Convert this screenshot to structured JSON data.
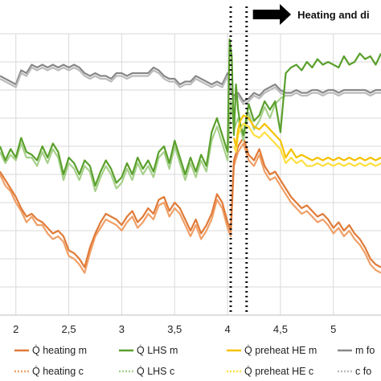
{
  "chart_data": {
    "type": "line",
    "title": "",
    "xlabel": "",
    "ylabel": "",
    "xlim": [
      1.85,
      5.45
    ],
    "ylim": [
      0,
      10
    ],
    "x_ticks": [
      2,
      2.5,
      3,
      3.5,
      4,
      4.5,
      5
    ],
    "x_tick_labels": [
      "2",
      "2,5",
      "3",
      "3,5",
      "4",
      "4,5",
      "5"
    ],
    "grid": true,
    "annotation": {
      "text": "Heating and di",
      "arrow_from_x": 4.24,
      "arrow_to_x": 4.6
    },
    "vertical_markers": [
      4.03,
      4.18
    ],
    "series": [
      {
        "name": "Q̇ heating m",
        "color": "#e07b39",
        "x": [
          1.85,
          1.9,
          1.95,
          2.0,
          2.05,
          2.1,
          2.15,
          2.2,
          2.25,
          2.3,
          2.35,
          2.4,
          2.45,
          2.5,
          2.55,
          2.6,
          2.65,
          2.7,
          2.75,
          2.8,
          2.85,
          2.9,
          2.95,
          3.0,
          3.05,
          3.1,
          3.15,
          3.2,
          3.25,
          3.3,
          3.35,
          3.4,
          3.45,
          3.5,
          3.55,
          3.6,
          3.65,
          3.7,
          3.75,
          3.8,
          3.85,
          3.9,
          3.95,
          4.0,
          4.03,
          4.06,
          4.1,
          4.15,
          4.2,
          4.25,
          4.3,
          4.35,
          4.4,
          4.45,
          4.5,
          4.55,
          4.6,
          4.65,
          4.7,
          4.75,
          4.8,
          4.85,
          4.9,
          4.95,
          5.0,
          5.05,
          5.1,
          5.15,
          5.2,
          5.25,
          5.3,
          5.35,
          5.4,
          5.45
        ],
        "y": [
          5.1,
          4.8,
          4.5,
          4.2,
          3.8,
          3.5,
          3.6,
          3.4,
          3.3,
          3.1,
          2.9,
          3.0,
          2.8,
          2.3,
          2.2,
          2.0,
          1.7,
          2.4,
          2.9,
          3.3,
          3.6,
          3.5,
          3.4,
          3.2,
          3.5,
          3.7,
          3.3,
          3.5,
          3.8,
          3.6,
          4.1,
          4.2,
          3.7,
          4.0,
          3.8,
          3.4,
          3.0,
          3.4,
          2.9,
          3.2,
          3.6,
          4.3,
          4.0,
          3.3,
          3.0,
          5.5,
          6.0,
          6.3,
          5.7,
          5.5,
          5.9,
          5.3,
          5.0,
          5.1,
          4.8,
          4.5,
          4.2,
          4.0,
          3.8,
          3.9,
          3.7,
          3.5,
          3.6,
          3.4,
          3.1,
          3.3,
          3.0,
          3.2,
          2.9,
          2.7,
          2.4,
          2.0,
          1.8,
          1.7
        ]
      },
      {
        "name": "Q̇ heating c",
        "color": "#f0a068",
        "x": [
          1.85,
          1.9,
          1.95,
          2.0,
          2.05,
          2.1,
          2.15,
          2.2,
          2.25,
          2.3,
          2.35,
          2.4,
          2.45,
          2.5,
          2.55,
          2.6,
          2.65,
          2.7,
          2.75,
          2.8,
          2.85,
          2.9,
          2.95,
          3.0,
          3.05,
          3.1,
          3.15,
          3.2,
          3.25,
          3.3,
          3.35,
          3.4,
          3.45,
          3.5,
          3.55,
          3.6,
          3.65,
          3.7,
          3.75,
          3.8,
          3.85,
          3.9,
          3.95,
          4.0,
          4.03,
          4.06,
          4.1,
          4.15,
          4.2,
          4.25,
          4.3,
          4.35,
          4.4,
          4.45,
          4.5,
          4.55,
          4.6,
          4.65,
          4.7,
          4.75,
          4.8,
          4.85,
          4.9,
          4.95,
          5.0,
          5.05,
          5.1,
          5.15,
          5.2,
          5.25,
          5.3,
          5.35,
          5.4,
          5.45
        ],
        "y": [
          5.0,
          4.6,
          4.4,
          4.0,
          3.7,
          3.3,
          3.5,
          3.2,
          3.2,
          2.9,
          2.7,
          2.8,
          2.6,
          2.1,
          2.0,
          1.8,
          1.5,
          2.2,
          2.8,
          3.1,
          3.4,
          3.3,
          3.2,
          3.0,
          3.3,
          3.5,
          3.1,
          3.3,
          3.6,
          3.4,
          3.9,
          4.0,
          3.5,
          3.8,
          3.6,
          3.2,
          2.8,
          3.2,
          2.7,
          3.0,
          3.4,
          4.1,
          3.8,
          3.1,
          2.8,
          5.3,
          5.8,
          6.1,
          5.5,
          5.3,
          5.7,
          5.1,
          4.8,
          4.9,
          4.6,
          4.3,
          4.0,
          3.8,
          3.6,
          3.7,
          3.5,
          3.3,
          3.4,
          3.2,
          2.9,
          3.1,
          2.8,
          3.0,
          2.7,
          2.5,
          2.2,
          1.8,
          1.6,
          1.5
        ]
      },
      {
        "name": "Q̇ LHS m",
        "color": "#5aa02c",
        "x": [
          1.85,
          1.9,
          1.95,
          2.0,
          2.05,
          2.1,
          2.15,
          2.2,
          2.25,
          2.3,
          2.35,
          2.4,
          2.45,
          2.5,
          2.55,
          2.6,
          2.65,
          2.7,
          2.75,
          2.8,
          2.85,
          2.9,
          2.95,
          3.0,
          3.05,
          3.1,
          3.15,
          3.2,
          3.25,
          3.3,
          3.35,
          3.4,
          3.45,
          3.5,
          3.55,
          3.6,
          3.65,
          3.7,
          3.75,
          3.8,
          3.85,
          3.9,
          3.95,
          4.0,
          4.02,
          4.04,
          4.06,
          4.08,
          4.1,
          4.12,
          4.15,
          4.2,
          4.25,
          4.3,
          4.35,
          4.4,
          4.45,
          4.5,
          4.55,
          4.6,
          4.65,
          4.7,
          4.75,
          4.8,
          4.85,
          4.9,
          4.95,
          5.0,
          5.05,
          5.1,
          5.15,
          5.2,
          5.25,
          5.3,
          5.35,
          5.4,
          5.45
        ],
        "y": [
          6.0,
          5.5,
          5.9,
          5.6,
          6.3,
          5.8,
          5.7,
          5.5,
          6.0,
          5.6,
          6.1,
          5.8,
          5.0,
          5.6,
          5.4,
          5.0,
          5.5,
          5.3,
          4.6,
          5.1,
          5.5,
          5.2,
          4.7,
          4.9,
          5.4,
          5.0,
          5.6,
          5.2,
          5.5,
          5.1,
          5.8,
          6.0,
          5.4,
          6.2,
          5.6,
          5.0,
          5.6,
          5.1,
          5.7,
          5.3,
          6.5,
          7.0,
          6.4,
          5.8,
          9.8,
          9.2,
          6.4,
          8.2,
          7.3,
          6.8,
          6.4,
          7.5,
          6.9,
          7.1,
          7.6,
          7.3,
          7.6,
          6.5,
          8.6,
          8.8,
          8.9,
          8.7,
          9.0,
          8.8,
          9.1,
          8.9,
          9.0,
          8.9,
          8.8,
          9.2,
          8.9,
          9.0,
          9.3,
          9.1,
          9.2,
          8.9,
          9.3
        ]
      },
      {
        "name": "Q̇ LHS c",
        "color": "#a7d08c",
        "x": [
          1.85,
          1.9,
          1.95,
          2.0,
          2.05,
          2.1,
          2.15,
          2.2,
          2.25,
          2.3,
          2.35,
          2.4,
          2.45,
          2.5,
          2.55,
          2.6,
          2.65,
          2.7,
          2.75,
          2.8,
          2.85,
          2.9,
          2.95,
          3.0,
          3.05,
          3.1,
          3.15,
          3.2,
          3.25,
          3.3,
          3.35,
          3.4,
          3.45,
          3.5,
          3.55,
          3.6,
          3.65,
          3.7,
          3.75,
          3.8,
          3.85,
          3.9,
          3.95,
          4.0,
          4.03,
          4.06,
          4.1,
          4.15,
          4.2,
          4.25,
          4.3,
          4.35,
          4.4,
          4.45,
          4.5,
          4.55
        ],
        "y": [
          5.8,
          5.4,
          5.7,
          5.5,
          6.1,
          5.6,
          5.6,
          5.3,
          5.8,
          5.4,
          5.9,
          5.6,
          4.8,
          5.4,
          5.2,
          4.8,
          5.3,
          5.1,
          4.4,
          4.9,
          5.3,
          5.0,
          4.5,
          4.7,
          5.2,
          4.8,
          5.4,
          5.0,
          5.3,
          4.9,
          5.6,
          5.8,
          5.2,
          6.0,
          5.4,
          4.8,
          5.4,
          4.9,
          5.5,
          5.1,
          6.2,
          6.7,
          6.1,
          5.5,
          7.6,
          6.6,
          7.0,
          6.2,
          7.2,
          6.6,
          6.9,
          7.4,
          7.0,
          7.5,
          7.7,
          7.8
        ]
      },
      {
        "name": "Q̇ preheat HE m",
        "color": "#f5c200",
        "x": [
          4.06,
          4.08,
          4.1,
          4.12,
          4.15,
          4.2,
          4.25,
          4.3,
          4.35,
          4.4,
          4.45,
          4.5,
          4.55,
          4.6,
          4.65,
          4.7,
          4.75,
          4.8,
          4.85,
          4.9,
          4.95,
          5.0,
          5.05,
          5.1,
          5.15,
          5.2,
          5.25,
          5.3,
          5.35,
          5.4,
          5.45
        ],
        "y": [
          6.3,
          6.0,
          6.6,
          6.9,
          7.1,
          7.0,
          6.7,
          6.6,
          6.8,
          6.6,
          6.4,
          6.2,
          5.6,
          5.9,
          5.6,
          5.7,
          5.6,
          5.5,
          5.6,
          5.5,
          5.6,
          5.5,
          5.6,
          5.5,
          5.6,
          5.5,
          5.6,
          5.5,
          5.6,
          5.5,
          5.6
        ]
      },
      {
        "name": "Q̇ preheat HE c",
        "color": "#ffdf40",
        "x": [
          4.06,
          4.08,
          4.1,
          4.12,
          4.15,
          4.2,
          4.25,
          4.3,
          4.35,
          4.4,
          4.45,
          4.5,
          4.55,
          4.6,
          4.65,
          4.7,
          4.75,
          4.8,
          4.85,
          4.9,
          4.95,
          5.0,
          5.05,
          5.1,
          5.15,
          5.2,
          5.25,
          5.3,
          5.35,
          5.4,
          5.45
        ],
        "y": [
          6.0,
          5.8,
          6.4,
          6.6,
          6.8,
          6.7,
          6.4,
          6.3,
          6.5,
          6.3,
          6.1,
          5.9,
          5.4,
          5.6,
          5.4,
          5.5,
          5.3,
          5.3,
          5.4,
          5.3,
          5.4,
          5.3,
          5.4,
          5.3,
          5.4,
          5.3,
          5.4,
          5.3,
          5.4,
          5.3,
          5.4
        ]
      },
      {
        "name": "m fo",
        "color": "#888888",
        "x": [
          1.85,
          1.9,
          1.95,
          2.0,
          2.05,
          2.1,
          2.15,
          2.2,
          2.25,
          2.3,
          2.35,
          2.4,
          2.45,
          2.5,
          2.55,
          2.6,
          2.65,
          2.7,
          2.75,
          2.8,
          2.85,
          2.9,
          2.95,
          3.0,
          3.05,
          3.1,
          3.15,
          3.2,
          3.25,
          3.3,
          3.35,
          3.4,
          3.45,
          3.5,
          3.55,
          3.6,
          3.65,
          3.7,
          3.75,
          3.8,
          3.85,
          3.9,
          3.95,
          4.0,
          4.03,
          4.06,
          4.1,
          4.15,
          4.2,
          4.25,
          4.3,
          4.35,
          4.4,
          4.45,
          4.5,
          4.55,
          4.6,
          4.65,
          4.7,
          4.75,
          4.8,
          4.85,
          4.9,
          4.95,
          5.0,
          5.05,
          5.1,
          5.15,
          5.2,
          5.25,
          5.3,
          5.35,
          5.4,
          5.45
        ],
        "y": [
          8.5,
          8.4,
          8.3,
          8.2,
          8.7,
          8.6,
          8.9,
          8.8,
          8.9,
          8.8,
          8.9,
          8.8,
          8.9,
          8.8,
          8.9,
          8.8,
          8.6,
          8.5,
          8.6,
          8.5,
          8.5,
          8.4,
          8.6,
          8.6,
          8.5,
          8.6,
          8.6,
          8.6,
          8.6,
          8.8,
          8.7,
          8.5,
          8.4,
          8.4,
          8.2,
          8.3,
          8.3,
          8.5,
          8.4,
          8.3,
          8.2,
          8.3,
          8.2,
          8.6,
          8.0,
          7.8,
          7.9,
          7.6,
          7.7,
          7.9,
          7.8,
          8.0,
          8.1,
          8.2,
          8.0,
          7.9,
          7.9,
          8.0,
          7.9,
          7.9,
          8.0,
          8.0,
          7.9,
          8.0,
          8.0,
          7.9,
          8.0,
          8.0,
          8.0,
          8.0,
          8.0,
          7.9,
          8.0,
          8.0
        ]
      },
      {
        "name": "c fo",
        "color": "#bbbbbb",
        "x": [
          1.85,
          1.9,
          1.95,
          2.0,
          2.05,
          2.1,
          2.15,
          2.2,
          2.25,
          2.3,
          2.35,
          2.4,
          2.45,
          2.5,
          2.55,
          2.6,
          2.65,
          2.7,
          2.75,
          2.8,
          2.85,
          2.9,
          2.95,
          3.0,
          3.05,
          3.1,
          3.15,
          3.2,
          3.25,
          3.3,
          3.35,
          3.4,
          3.45,
          3.5,
          3.55,
          3.6,
          3.65,
          3.7,
          3.75,
          3.8,
          3.85,
          3.9,
          3.95,
          4.0,
          4.03,
          4.06,
          4.1,
          4.15,
          4.2,
          4.25,
          4.3,
          4.35,
          4.4,
          4.45,
          4.5,
          4.55,
          4.6,
          4.65,
          4.7,
          4.75,
          4.8,
          4.85,
          4.9,
          4.95,
          5.0,
          5.05,
          5.1,
          5.15,
          5.2,
          5.25,
          5.3,
          5.35,
          5.4,
          5.45
        ],
        "y": [
          8.4,
          8.3,
          8.2,
          8.1,
          8.6,
          8.5,
          8.8,
          8.7,
          8.8,
          8.7,
          8.8,
          8.7,
          8.8,
          8.7,
          8.8,
          8.7,
          8.5,
          8.4,
          8.5,
          8.4,
          8.4,
          8.3,
          8.5,
          8.5,
          8.4,
          8.5,
          8.5,
          8.5,
          8.5,
          8.7,
          8.6,
          8.4,
          8.3,
          8.3,
          8.1,
          8.2,
          8.2,
          8.4,
          8.3,
          8.2,
          8.1,
          8.2,
          8.1,
          8.5,
          7.9,
          7.7,
          7.8,
          7.5,
          7.6,
          7.8,
          7.7,
          7.9,
          8.0,
          8.1,
          7.9,
          7.8,
          7.8,
          7.9,
          7.8,
          7.8,
          7.9,
          7.9,
          7.8,
          7.9,
          7.9,
          7.8,
          7.9,
          7.9,
          7.9,
          7.9,
          7.9,
          7.8,
          7.9,
          7.9
        ]
      }
    ],
    "legend": [
      {
        "label": "Q̇ heating m",
        "color": "#e07b39",
        "dotted": false
      },
      {
        "label": "Q̇ LHS m",
        "color": "#5aa02c",
        "dotted": false
      },
      {
        "label": "Q̇ preheat HE m",
        "color": "#f5c200",
        "dotted": false
      },
      {
        "label": "m fo",
        "color": "#888888",
        "dotted": false
      },
      {
        "label": "Q̇ heating c",
        "color": "#f0a068",
        "dotted": true
      },
      {
        "label": "Q̇ LHS c",
        "color": "#a7d08c",
        "dotted": true
      },
      {
        "label": "Q̇ preheat HE c",
        "color": "#ffdf40",
        "dotted": true
      },
      {
        "label": "c fo",
        "color": "#bbbbbb",
        "dotted": true
      }
    ]
  }
}
